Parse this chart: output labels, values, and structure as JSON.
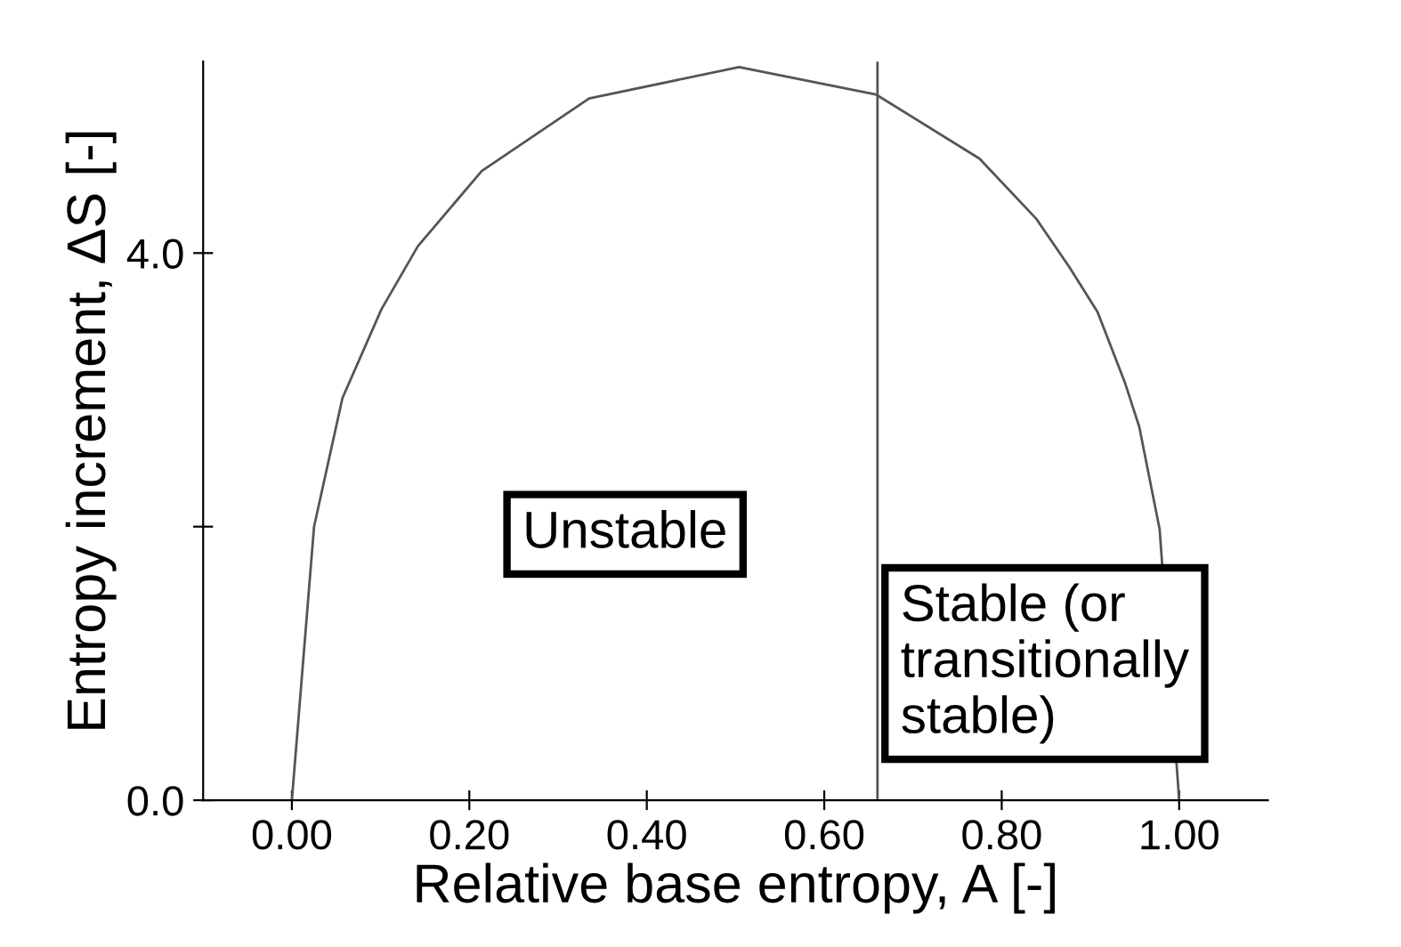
{
  "chart_data": {
    "type": "line",
    "xlabel": "Relative base entropy, A [-]",
    "ylabel": "Entropy increment, ΔS [-]",
    "x": [
      0,
      0.025,
      0.057,
      0.101,
      0.142,
      0.214,
      0.335,
      0.504,
      0.658,
      0.775,
      0.839,
      0.876,
      0.908,
      0.939,
      0.955,
      0.978,
      1.0
    ],
    "series": [
      {
        "color": "#555555",
        "values": [
          0,
          2.0,
          2.94,
          3.59,
          4.05,
          4.6,
          5.13,
          5.36,
          5.16,
          4.69,
          4.25,
          3.9,
          3.57,
          3.05,
          2.73,
          1.98,
          0
        ]
      }
    ],
    "xlim": [
      -0.1,
      1.1
    ],
    "xticks": [
      {
        "value": 0,
        "label": "0.00"
      },
      {
        "value": 0.2,
        "label": "0.20"
      },
      {
        "value": 0.4,
        "label": "0.40"
      },
      {
        "value": 0.6,
        "label": "0.60"
      },
      {
        "value": 0.8,
        "label": "0.80"
      },
      {
        "value": 1.0,
        "label": "1.00"
      }
    ],
    "ylim": [
      0,
      5.4
    ],
    "yticks": [
      {
        "value": 0,
        "label": "0.0"
      },
      {
        "value": 2,
        "label": null
      },
      {
        "value": 4,
        "label": "4.0"
      }
    ],
    "ref_lines": [
      {
        "axis": "x",
        "value": 0.66,
        "color": "#555555"
      }
    ],
    "annotations": [
      "Unstable",
      "Stable (or\ntransitionally\nstable)"
    ],
    "grid": false,
    "legend": false,
    "marker": "none",
    "line_style": "solid"
  }
}
